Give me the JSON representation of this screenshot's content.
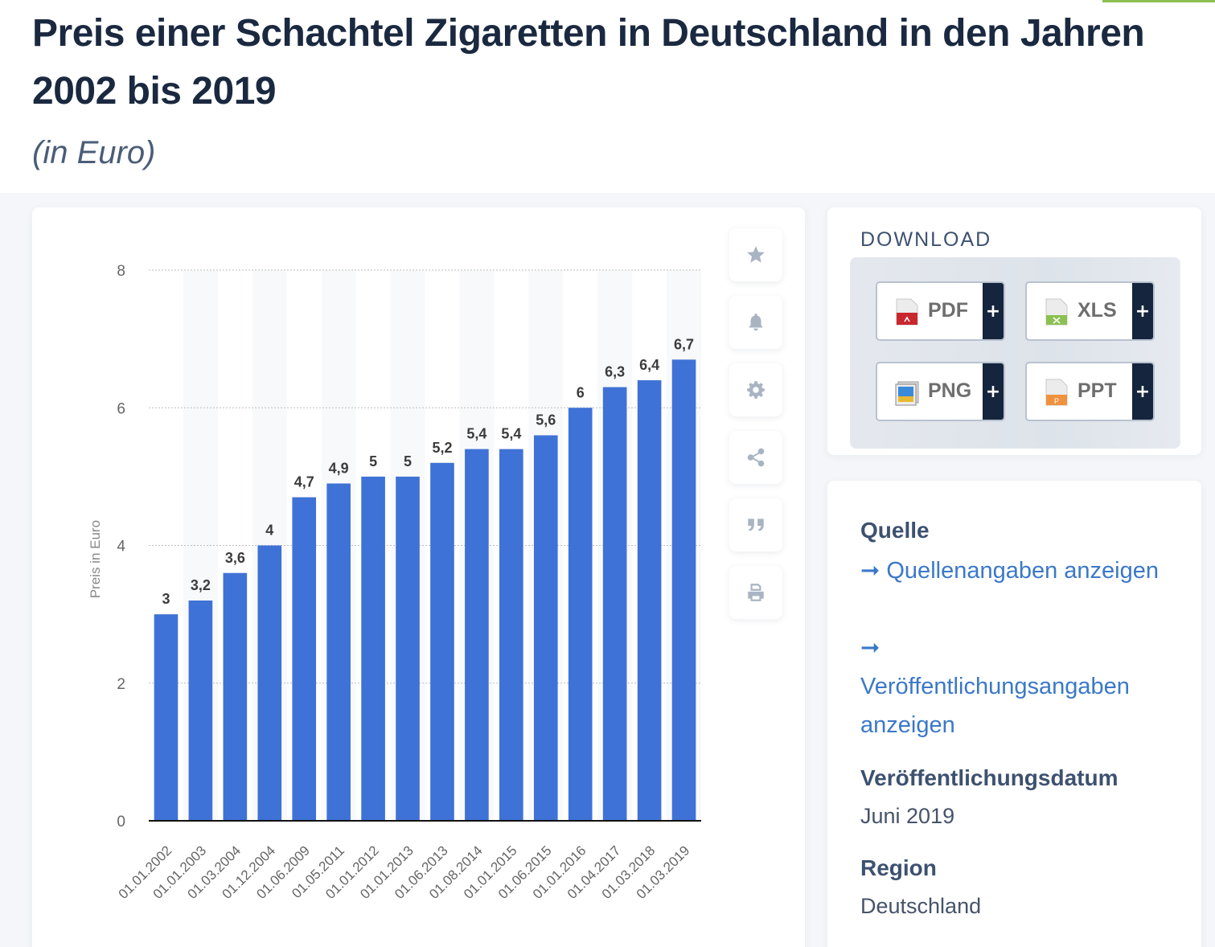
{
  "page": {
    "title": "Preis einer Schachtel Zigaretten in Deutschland in den Jahren 2002 bis 2019",
    "subtitle": "(in Euro)",
    "accent_color": "#8cc152"
  },
  "chart_data": {
    "type": "bar",
    "title": "Preis einer Schachtel Zigaretten in Deutschland in den Jahren 2002 bis 2019",
    "subtitle": "(in Euro)",
    "xlabel": "",
    "ylabel": "Preis in Euro",
    "ylim": [
      0,
      8
    ],
    "yticks": [
      0,
      2,
      4,
      6,
      8
    ],
    "ytick_labels": [
      "0",
      "2",
      "4",
      "6",
      "8"
    ],
    "grid": true,
    "bar_color": "#3f72d6",
    "categories": [
      "01.01.2002",
      "01.01.2003",
      "01.03.2004",
      "01.12.2004",
      "01.06.2009",
      "01.05.2011",
      "01.01.2012",
      "01.01.2013",
      "01.06.2013",
      "01.08.2014",
      "01.01.2015",
      "01.06.2015",
      "01.01.2016",
      "01.04.2017",
      "01.03.2018",
      "01.03.2019"
    ],
    "values": [
      3,
      3.2,
      3.6,
      4,
      4.7,
      4.9,
      5,
      5,
      5.2,
      5.4,
      5.4,
      5.6,
      6,
      6.3,
      6.4,
      6.7
    ],
    "value_labels": [
      "3",
      "3,2",
      "3,6",
      "4",
      "4,7",
      "4,9",
      "5",
      "5",
      "5,2",
      "5,4",
      "5,4",
      "5,6",
      "6",
      "6,3",
      "6,4",
      "6,7"
    ]
  },
  "toolbar": {
    "items": [
      {
        "icon": "star-icon",
        "name": "favorite-button"
      },
      {
        "icon": "bell-icon",
        "name": "notification-button"
      },
      {
        "icon": "gear-icon",
        "name": "settings-button"
      },
      {
        "icon": "share-icon",
        "name": "share-button"
      },
      {
        "icon": "quote-icon",
        "name": "cite-button"
      },
      {
        "icon": "printer-icon",
        "name": "print-button"
      }
    ]
  },
  "download": {
    "title": "DOWNLOAD",
    "buttons": [
      {
        "label": "PDF",
        "icon": "pdf-file-icon",
        "color": "#c8272d",
        "plus": "+"
      },
      {
        "label": "XLS",
        "icon": "xls-file-icon",
        "color": "#8cc152",
        "plus": "+"
      },
      {
        "label": "PNG",
        "icon": "png-image-icon",
        "color": "#3b8ad8",
        "plus": "+"
      },
      {
        "label": "PPT",
        "icon": "ppt-file-icon",
        "color": "#f0913e",
        "plus": "+"
      }
    ]
  },
  "info": {
    "source_heading": "Quelle",
    "source_link": "Quellenangaben anzeigen",
    "publication_link": "Veröffentlichungsangaben anzeigen",
    "arrow": "➞",
    "date_heading": "Veröffentlichungsdatum",
    "date_value": "Juni 2019",
    "region_heading": "Region",
    "region_value": "Deutschland"
  }
}
